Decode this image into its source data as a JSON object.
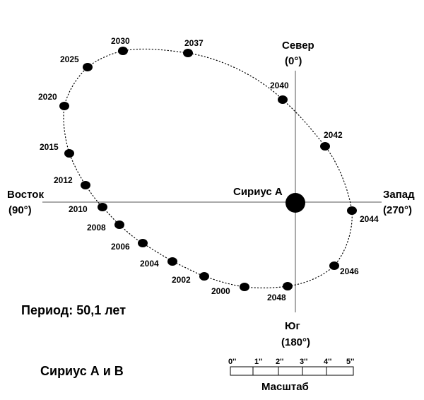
{
  "title": "Сириус А и В",
  "period_label": "Период: 50,1 лет",
  "star_label": "Сириус А",
  "directions": {
    "north": {
      "name": "Север",
      "deg": "(0°)"
    },
    "south": {
      "name": "Юг",
      "deg": "(180°)"
    },
    "east": {
      "name": "Восток",
      "deg": "(90°)"
    },
    "west": {
      "name": "Запад",
      "deg": "(270°)"
    }
  },
  "orbit_points": [
    {
      "year": "2000"
    },
    {
      "year": "2002"
    },
    {
      "year": "2004"
    },
    {
      "year": "2006"
    },
    {
      "year": "2008"
    },
    {
      "year": "2010"
    },
    {
      "year": "2012"
    },
    {
      "year": "2015"
    },
    {
      "year": "2020"
    },
    {
      "year": "2025"
    },
    {
      "year": "2030"
    },
    {
      "year": "2037"
    },
    {
      "year": "2040"
    },
    {
      "year": "2042"
    },
    {
      "year": "2044"
    },
    {
      "year": "2046"
    },
    {
      "year": "2048"
    }
  ],
  "scale": {
    "label": "Масштаб",
    "ticks": [
      "0''",
      "1''",
      "2''",
      "3''",
      "4''",
      "5''"
    ]
  },
  "colors": {
    "ink": "#000000",
    "axis": "#555555",
    "background": "#ffffff"
  }
}
